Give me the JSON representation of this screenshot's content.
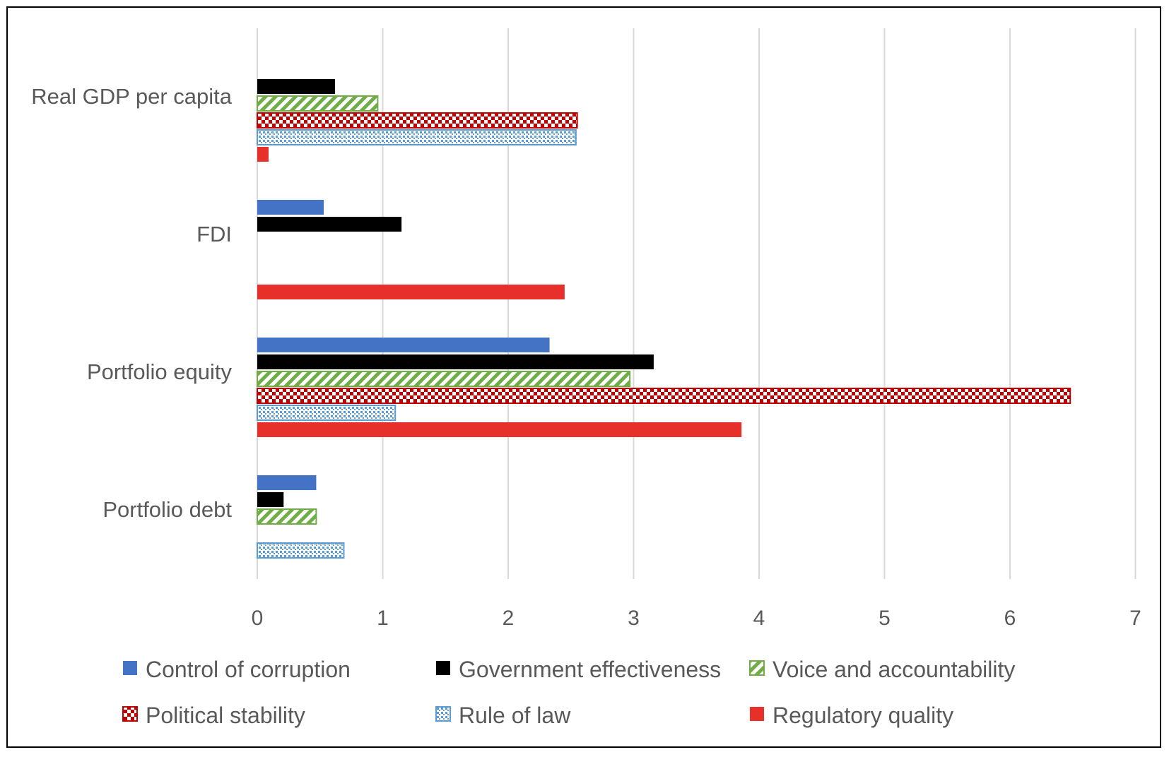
{
  "chart_data": {
    "type": "bar",
    "orientation": "horizontal",
    "categories": [
      "Real GDP per capita",
      "FDI",
      "Portfolio equity",
      "Portfolio debt"
    ],
    "series": [
      {
        "name": "Control of corruption",
        "color": "#4472C4",
        "pattern": "solid",
        "values": [
          null,
          0.53,
          2.33,
          0.47
        ]
      },
      {
        "name": "Government effectiveness",
        "color": "#000000",
        "pattern": "solid",
        "values": [
          0.62,
          1.15,
          3.16,
          0.21
        ]
      },
      {
        "name": "Voice and accountability",
        "color": "#70AD47",
        "pattern": "diagonal-stripes",
        "values": [
          0.96,
          null,
          2.97,
          0.47
        ]
      },
      {
        "name": "Political stability",
        "color": "#C00000",
        "pattern": "checkerboard",
        "values": [
          2.55,
          null,
          6.48,
          null
        ]
      },
      {
        "name": "Rule of law",
        "color": "#5B9BD5",
        "pattern": "dots",
        "values": [
          2.54,
          null,
          1.1,
          0.69
        ]
      },
      {
        "name": "Regulatory quality",
        "color": "#E8302A",
        "pattern": "solid",
        "values": [
          0.09,
          2.45,
          3.86,
          null
        ]
      }
    ],
    "xlim": [
      0,
      7
    ],
    "xticks": [
      "0",
      "1",
      "2",
      "3",
      "4",
      "5",
      "6",
      "7"
    ],
    "grid": true,
    "legend_position": "bottom"
  }
}
